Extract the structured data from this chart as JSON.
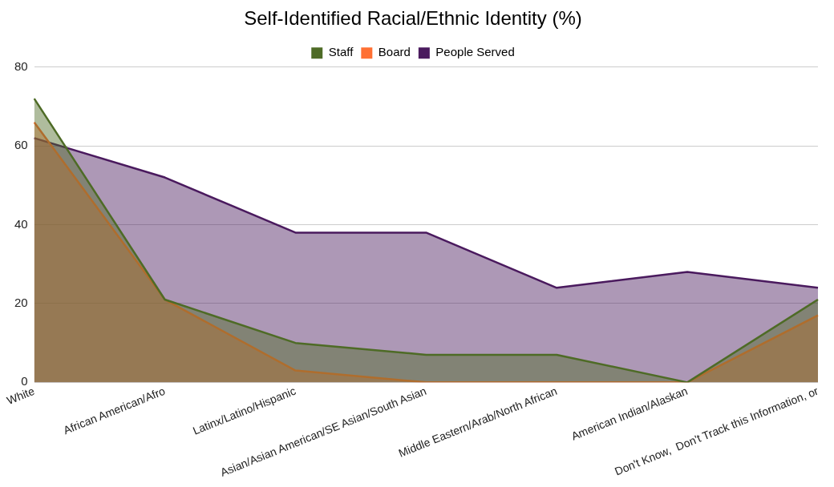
{
  "chart_data": {
    "type": "area",
    "title": "Self-Identified Racial/Ethnic Identity (%)",
    "categories": [
      "White",
      "African American/Afro",
      "Latinx/Latino/Hispanic",
      "Asian/Asian American/SE Asian/South Asian",
      "Middle Eastern/Arab/North African",
      "American Indian/Alaskan",
      "Don't Know,  Don't Track this Information, or"
    ],
    "series": [
      {
        "name": "Staff",
        "color": "#4e6b26",
        "values": [
          72,
          21,
          10,
          7,
          7,
          0,
          21
        ]
      },
      {
        "name": "Board",
        "color": "#ff7033",
        "values": [
          66,
          21,
          3,
          0,
          0,
          0,
          17
        ]
      },
      {
        "name": "People Served",
        "color": "#4a1a5e",
        "values": [
          62,
          52,
          38,
          38,
          24,
          28,
          24
        ]
      }
    ],
    "ylim": [
      0,
      80
    ],
    "yticks": [
      0,
      20,
      40,
      60,
      80
    ],
    "grid": "y",
    "legend": "top"
  }
}
